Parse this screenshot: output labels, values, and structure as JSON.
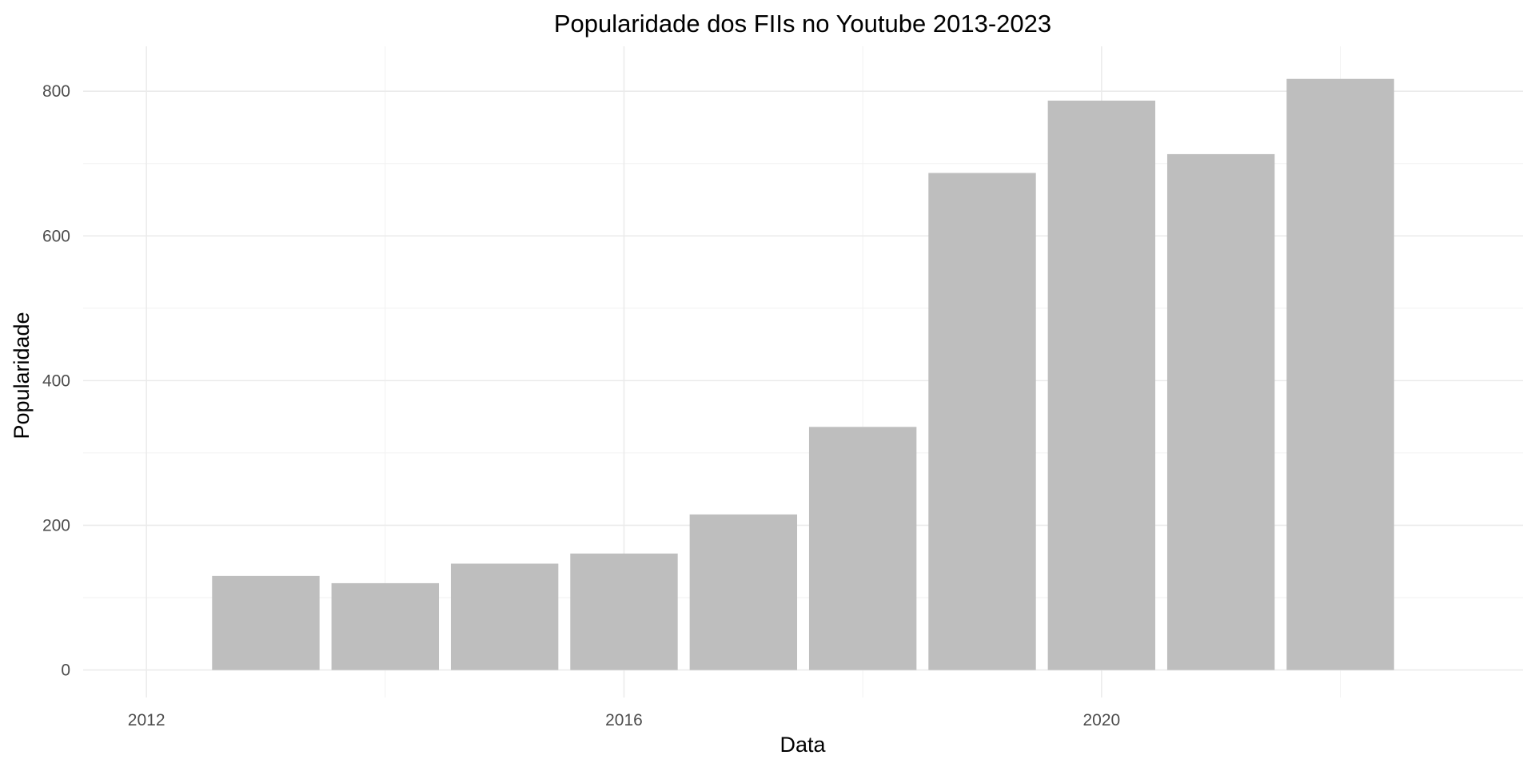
{
  "chart_data": {
    "type": "bar",
    "title": "Popularidade dos FIIs no Youtube 2013-2023",
    "xlabel": "Data",
    "ylabel": "Popularidade",
    "x": [
      2013,
      2014,
      2015,
      2016,
      2017,
      2018,
      2019,
      2020,
      2021,
      2022
    ],
    "values": [
      130,
      120,
      147,
      161,
      215,
      336,
      687,
      787,
      713,
      817
    ],
    "xlim": [
      2011.47,
      2023.53
    ],
    "ylim": [
      -38,
      862
    ],
    "x_ticks": [
      2012,
      2016,
      2020
    ],
    "x_tick_labels": [
      "2012",
      "2016",
      "2020"
    ],
    "y_ticks": [
      0,
      200,
      400,
      600,
      800
    ],
    "y_tick_labels": [
      "0",
      "200",
      "400",
      "600",
      "800"
    ],
    "bar_color": "#bebebe",
    "grid": true,
    "legend": "none"
  }
}
